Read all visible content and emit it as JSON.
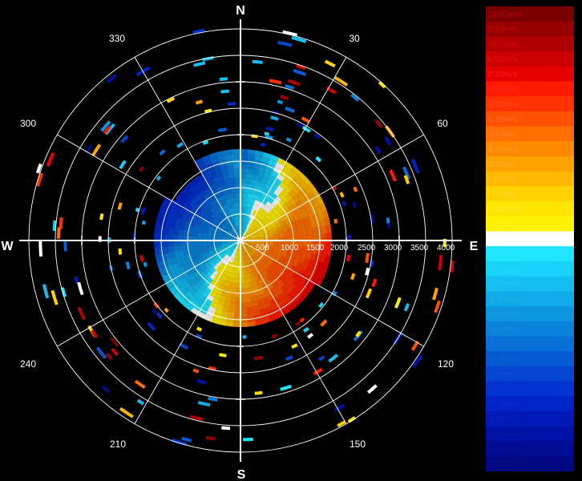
{
  "compass": {
    "north": "N",
    "south": "S",
    "east": "E",
    "west": "W"
  },
  "bearings": [
    "30",
    "60",
    "120",
    "150",
    "210",
    "240",
    "300",
    "330"
  ],
  "range_labels": [
    "500",
    "1000",
    "1500",
    "2000",
    "2500",
    "3000",
    "3500",
    "4000"
  ],
  "legend": {
    "entries": [
      {
        "label": "10.00m/s",
        "color": "#7a0000",
        "text_color": "#c00000"
      },
      {
        "label": "9.33m/s",
        "color": "#960000",
        "text_color": "#d40000"
      },
      {
        "label": "8.67m/s",
        "color": "#b00000",
        "text_color": "#e00000"
      },
      {
        "label": "8.00m/s",
        "color": "#cc0000",
        "text_color": "#e81010"
      },
      {
        "label": "7.33m/s",
        "color": "#e60000",
        "text_color": "#ff1a1a"
      },
      {
        "label": "6.87m/s",
        "color": "#ff1a00",
        "text_color": "#ff2a2a"
      },
      {
        "label": "6.00m/s",
        "color": "#ff3300",
        "text_color": "#ff4a2a"
      },
      {
        "label": "5.33m/s",
        "color": "#ff5200",
        "text_color": "#ff6a30"
      },
      {
        "label": "4.67m/s",
        "color": "#ff6e00",
        "text_color": "#ff8030"
      },
      {
        "label": "4.00m/s",
        "color": "#ff8a00",
        "text_color": "#ff9a30"
      },
      {
        "label": "3.33m/s",
        "color": "#ffa200",
        "text_color": "#ffb030"
      },
      {
        "label": "2.67m/s",
        "color": "#ffba00",
        "text_color": "#ffc430"
      },
      {
        "label": "2.00m/s",
        "color": "#ffd200",
        "text_color": "#ffd830"
      },
      {
        "label": "1.33m/s",
        "color": "#ffe600",
        "text_color": "#ffe630"
      },
      {
        "label": "0.67m/s",
        "color": "#fff200",
        "text_color": "#fff230"
      },
      {
        "label": "0.00m/s",
        "color": "#ffffff",
        "text_color": "#ffffff"
      },
      {
        "label": "-0.67m/s",
        "color": "#1ee6ff",
        "text_color": "#2ee8ff"
      },
      {
        "label": "-1.33m/s",
        "color": "#18d2fa",
        "text_color": "#28d6fc"
      },
      {
        "label": "-2.00m/s",
        "color": "#14bef0",
        "text_color": "#22c4f4"
      },
      {
        "label": "-2.67m/s",
        "color": "#10aae8",
        "text_color": "#20b0ea"
      },
      {
        "label": "-3.33m/s",
        "color": "#0c96e0",
        "text_color": "#1c9ce2"
      },
      {
        "label": "-4.00m/s",
        "color": "#0a82dc",
        "text_color": "#1a88de"
      },
      {
        "label": "-4.67m/s",
        "color": "#086ed8",
        "text_color": "#1874da"
      },
      {
        "label": "-5.33m/s",
        "color": "#065ad4",
        "text_color": "#1660d6"
      },
      {
        "label": "-6.00m/s",
        "color": "#0446d2",
        "text_color": "#144cd4"
      },
      {
        "label": "-6.67m/s",
        "color": "#0232d0",
        "text_color": "#1238d2"
      },
      {
        "label": "-7.33m/s",
        "color": "#0024c8",
        "text_color": "#102ac8"
      },
      {
        "label": "-8.00m/s",
        "color": "#001ab8",
        "text_color": "#1020b8"
      },
      {
        "label": "-8.67m/s",
        "color": "#0012a6",
        "text_color": "#1018a6"
      },
      {
        "label": "-9.33m/s",
        "color": "#000c94",
        "text_color": "#101294"
      },
      {
        "label": "-10.00m/s",
        "color": "#000882",
        "text_color": "#100e86"
      }
    ]
  }
}
